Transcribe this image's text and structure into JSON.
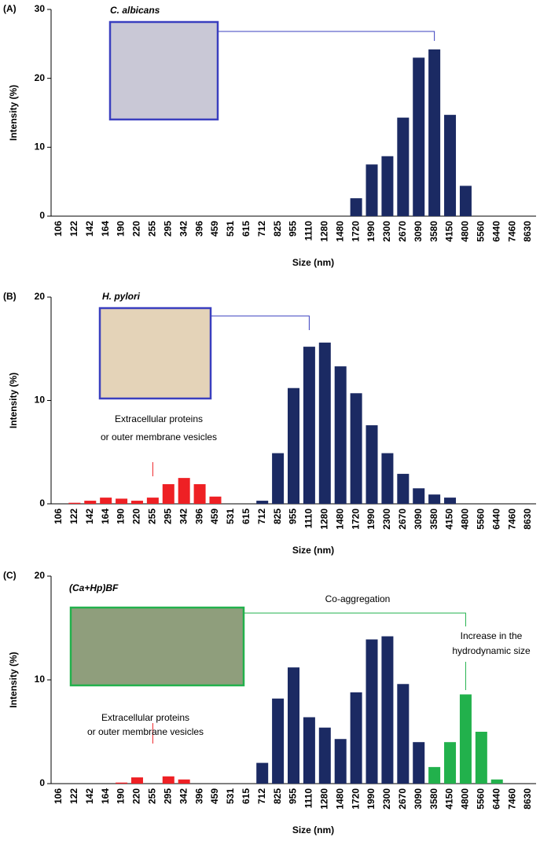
{
  "chart_data": [
    {
      "type": "bar",
      "panel_label": "(A)",
      "title": "C. albicans",
      "xlabel": "Size (nm)",
      "ylabel": "Intensity (%)",
      "categories": [
        "106",
        "122",
        "142",
        "164",
        "190",
        "220",
        "255",
        "295",
        "342",
        "396",
        "459",
        "531",
        "615",
        "712",
        "825",
        "955",
        "1110",
        "1280",
        "1480",
        "1720",
        "1990",
        "2300",
        "2670",
        "3090",
        "3580",
        "4150",
        "4800",
        "5560",
        "6440",
        "7460",
        "8630"
      ],
      "series": [
        {
          "color": "#1b2a63",
          "values": [
            null,
            null,
            null,
            null,
            null,
            null,
            null,
            null,
            null,
            null,
            null,
            null,
            null,
            null,
            null,
            null,
            null,
            null,
            null,
            2.6,
            7.5,
            8.7,
            14.3,
            23,
            24.2,
            14.7,
            4.4,
            null,
            null,
            null,
            null
          ]
        }
      ],
      "ylim": [
        0,
        30
      ],
      "yticks": [
        0,
        10,
        20,
        30
      ],
      "annotations": []
    },
    {
      "type": "bar",
      "panel_label": "(B)",
      "title": "H. pylori",
      "xlabel": "Size (nm)",
      "ylabel": "Intensity (%)",
      "categories": [
        "106",
        "122",
        "142",
        "164",
        "190",
        "220",
        "255",
        "295",
        "342",
        "396",
        "459",
        "531",
        "615",
        "712",
        "825",
        "955",
        "1110",
        "1280",
        "1480",
        "1720",
        "1990",
        "2300",
        "2670",
        "3090",
        "3580",
        "4150",
        "4800",
        "5560",
        "6440",
        "7460",
        "8630"
      ],
      "series": [
        {
          "color": "#ee2024",
          "values": [
            null,
            0.1,
            0.3,
            0.6,
            0.5,
            0.3,
            0.6,
            1.9,
            2.5,
            1.9,
            0.7,
            null,
            null,
            null,
            null,
            null,
            null,
            null,
            null,
            null,
            null,
            null,
            null,
            null,
            null,
            null,
            null,
            null,
            null,
            null,
            null
          ]
        },
        {
          "color": "#1b2a63",
          "values": [
            null,
            null,
            null,
            null,
            null,
            null,
            null,
            null,
            null,
            null,
            null,
            null,
            null,
            0.3,
            4.9,
            11.2,
            15.2,
            15.6,
            13.3,
            10.7,
            7.6,
            4.9,
            2.9,
            1.5,
            0.9,
            0.6,
            null,
            null,
            null,
            null,
            null
          ]
        }
      ],
      "ylim": [
        0,
        20
      ],
      "yticks": [
        0,
        10,
        20
      ],
      "annotations": [
        "Extracellular proteins",
        "or outer membrane vesicles"
      ]
    },
    {
      "type": "bar",
      "panel_label": "(C)",
      "title": "(Ca+Hp)BF",
      "xlabel": "Size (nm)",
      "ylabel": "Intensity (%)",
      "categories": [
        "106",
        "122",
        "142",
        "164",
        "190",
        "220",
        "255",
        "295",
        "342",
        "396",
        "459",
        "531",
        "615",
        "712",
        "825",
        "955",
        "1110",
        "1280",
        "1480",
        "1720",
        "1990",
        "2300",
        "2670",
        "3090",
        "3580",
        "4150",
        "4800",
        "5560",
        "6440",
        "7460",
        "8630"
      ],
      "series": [
        {
          "color": "#ee2024",
          "values": [
            null,
            null,
            null,
            null,
            0.1,
            0.6,
            null,
            0.7,
            0.4,
            null,
            null,
            null,
            null,
            null,
            null,
            null,
            null,
            null,
            null,
            null,
            null,
            null,
            null,
            null,
            null,
            null,
            null,
            null,
            null,
            null,
            null
          ]
        },
        {
          "color": "#1b2a63",
          "values": [
            null,
            null,
            null,
            null,
            null,
            null,
            null,
            null,
            null,
            null,
            null,
            null,
            null,
            2.0,
            8.2,
            11.2,
            6.4,
            5.4,
            4.3,
            8.8,
            13.9,
            14.2,
            9.6,
            4.0,
            null,
            null,
            null,
            null,
            null,
            null,
            null
          ]
        },
        {
          "color": "#22b14c",
          "values": [
            null,
            null,
            null,
            null,
            null,
            null,
            null,
            null,
            null,
            null,
            null,
            null,
            null,
            null,
            null,
            null,
            null,
            null,
            null,
            null,
            null,
            null,
            null,
            null,
            1.6,
            4.0,
            8.6,
            5.0,
            0.4,
            null,
            null
          ]
        }
      ],
      "ylim": [
        0,
        20
      ],
      "yticks": [
        0,
        10,
        20
      ],
      "annotations": [
        "Co-aggregation",
        "Increase in the",
        "hydrodynamic size",
        "Extracellular proteins",
        "or outer membrane vesicles"
      ]
    }
  ]
}
